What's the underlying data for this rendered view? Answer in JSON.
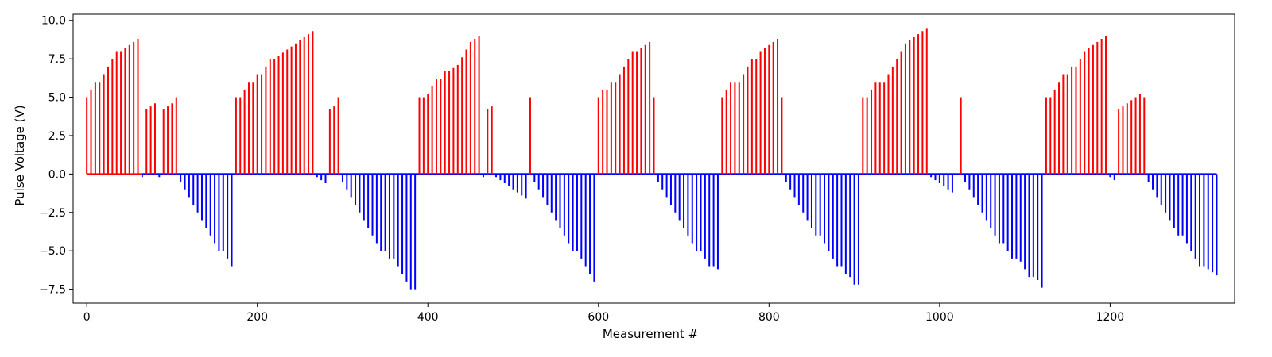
{
  "chart_data": {
    "type": "bar",
    "title": "",
    "xlabel": "Measurement #",
    "ylabel": "Pulse Voltage (V)",
    "xlim": [
      -16,
      1346
    ],
    "ylim": [
      -8.4,
      10.4
    ],
    "xticks": [
      0,
      200,
      400,
      600,
      800,
      1000,
      1200
    ],
    "yticks": [
      -7.5,
      -5.0,
      -2.5,
      0.0,
      2.5,
      5.0,
      7.5,
      10.0
    ],
    "grid": false,
    "colors": {
      "positive": "#ff0000",
      "negative": "#0000ff",
      "axes": "#000000",
      "background": "#ffffff"
    },
    "series": [
      {
        "polarity": "positive",
        "x": [
          0,
          5,
          10,
          15,
          20,
          25,
          30,
          35,
          40,
          45,
          50,
          55,
          60,
          70,
          75,
          80,
          90,
          95,
          100,
          105,
          175,
          180,
          185,
          190,
          195,
          200,
          205,
          210,
          215,
          220,
          225,
          230,
          235,
          240,
          245,
          250,
          255,
          260,
          265,
          285,
          290,
          295,
          390,
          395,
          400,
          405,
          410,
          415,
          420,
          425,
          430,
          435,
          440,
          445,
          450,
          455,
          460,
          470,
          475,
          520,
          600,
          605,
          610,
          615,
          620,
          625,
          630,
          635,
          640,
          645,
          650,
          655,
          660,
          665,
          745,
          750,
          755,
          760,
          765,
          770,
          775,
          780,
          785,
          790,
          795,
          800,
          805,
          810,
          815,
          910,
          915,
          920,
          925,
          930,
          935,
          940,
          945,
          950,
          955,
          960,
          965,
          970,
          975,
          980,
          985,
          1025,
          1125,
          1130,
          1135,
          1140,
          1145,
          1150,
          1155,
          1160,
          1165,
          1170,
          1175,
          1180,
          1185,
          1190,
          1195,
          1210,
          1215,
          1220,
          1225,
          1230,
          1235,
          1240
        ],
        "values": [
          5.0,
          5.5,
          6.0,
          6.0,
          6.5,
          7.0,
          7.5,
          8.0,
          8.0,
          8.2,
          8.4,
          8.6,
          8.8,
          4.2,
          4.4,
          4.6,
          4.2,
          4.4,
          4.6,
          5.0,
          5.0,
          5.0,
          5.5,
          6.0,
          6.0,
          6.5,
          6.5,
          7.0,
          7.5,
          7.5,
          7.7,
          7.9,
          8.1,
          8.3,
          8.5,
          8.7,
          8.9,
          9.1,
          9.3,
          4.2,
          4.4,
          5.0,
          5.0,
          5.0,
          5.2,
          5.7,
          6.2,
          6.2,
          6.7,
          6.7,
          6.9,
          7.1,
          7.6,
          8.1,
          8.6,
          8.8,
          9.0,
          4.2,
          4.4,
          5.0,
          5.0,
          5.5,
          5.5,
          6.0,
          6.0,
          6.5,
          7.0,
          7.5,
          8.0,
          8.0,
          8.2,
          8.4,
          8.6,
          5.0,
          5.0,
          5.5,
          6.0,
          6.0,
          6.0,
          6.5,
          7.0,
          7.5,
          7.5,
          8.0,
          8.2,
          8.4,
          8.6,
          8.8,
          5.0,
          5.0,
          5.0,
          5.5,
          6.0,
          6.0,
          6.0,
          6.5,
          7.0,
          7.5,
          8.0,
          8.5,
          8.7,
          8.9,
          9.1,
          9.3,
          9.5,
          5.0,
          5.0,
          5.0,
          5.5,
          6.0,
          6.5,
          6.5,
          7.0,
          7.0,
          7.5,
          8.0,
          8.2,
          8.4,
          8.6,
          8.8,
          9.0,
          4.2,
          4.4,
          4.6,
          4.8,
          5.0,
          5.2,
          5.0
        ]
      },
      {
        "polarity": "negative",
        "x": [
          65,
          85,
          110,
          115,
          120,
          125,
          130,
          135,
          140,
          145,
          150,
          155,
          160,
          165,
          170,
          270,
          275,
          280,
          300,
          305,
          310,
          315,
          320,
          325,
          330,
          335,
          340,
          345,
          350,
          355,
          360,
          365,
          370,
          375,
          380,
          385,
          465,
          480,
          485,
          490,
          495,
          500,
          505,
          510,
          515,
          525,
          530,
          535,
          540,
          545,
          550,
          555,
          560,
          565,
          570,
          575,
          580,
          585,
          590,
          595,
          670,
          675,
          680,
          685,
          690,
          695,
          700,
          705,
          710,
          715,
          720,
          725,
          730,
          735,
          740,
          820,
          825,
          830,
          835,
          840,
          845,
          850,
          855,
          860,
          865,
          870,
          875,
          880,
          885,
          890,
          895,
          900,
          905,
          990,
          995,
          1000,
          1005,
          1010,
          1015,
          1030,
          1035,
          1040,
          1045,
          1050,
          1055,
          1060,
          1065,
          1070,
          1075,
          1080,
          1085,
          1090,
          1095,
          1100,
          1105,
          1110,
          1115,
          1120,
          1200,
          1205,
          1245,
          1250,
          1255,
          1260,
          1265,
          1270,
          1275,
          1280,
          1285,
          1290,
          1295,
          1300,
          1305,
          1310,
          1315,
          1320,
          1325
        ],
        "values": [
          -0.2,
          -0.2,
          -0.5,
          -1.0,
          -1.5,
          -2.0,
          -2.5,
          -3.0,
          -3.5,
          -4.0,
          -4.5,
          -5.0,
          -5.0,
          -5.5,
          -6.0,
          -0.2,
          -0.4,
          -0.6,
          -0.5,
          -1.0,
          -1.5,
          -2.0,
          -2.5,
          -3.0,
          -3.5,
          -4.0,
          -4.5,
          -5.0,
          -5.0,
          -5.5,
          -5.5,
          -6.0,
          -6.5,
          -7.0,
          -7.5,
          -7.5,
          -0.2,
          -0.2,
          -0.4,
          -0.6,
          -0.8,
          -1.0,
          -1.2,
          -1.4,
          -1.6,
          -0.5,
          -1.0,
          -1.5,
          -2.0,
          -2.5,
          -3.0,
          -3.5,
          -4.0,
          -4.5,
          -5.0,
          -5.0,
          -5.5,
          -6.0,
          -6.5,
          -7.0,
          -0.5,
          -1.0,
          -1.5,
          -2.0,
          -2.5,
          -3.0,
          -3.5,
          -4.0,
          -4.5,
          -5.0,
          -5.0,
          -5.5,
          -6.0,
          -6.0,
          -6.2,
          -0.5,
          -1.0,
          -1.5,
          -2.0,
          -2.5,
          -3.0,
          -3.5,
          -4.0,
          -4.0,
          -4.5,
          -5.0,
          -5.5,
          -6.0,
          -6.0,
          -6.5,
          -6.7,
          -7.2,
          -7.2,
          -0.2,
          -0.4,
          -0.6,
          -0.8,
          -1.0,
          -1.2,
          -0.5,
          -1.0,
          -1.5,
          -2.0,
          -2.5,
          -3.0,
          -3.5,
          -4.0,
          -4.5,
          -4.5,
          -5.0,
          -5.5,
          -5.5,
          -5.7,
          -6.2,
          -6.7,
          -6.7,
          -6.9,
          -7.4,
          -0.2,
          -0.4,
          -0.5,
          -1.0,
          -1.5,
          -2.0,
          -2.5,
          -3.0,
          -3.5,
          -4.0,
          -4.0,
          -4.5,
          -5.0,
          -5.5,
          -6.0,
          -6.0,
          -6.2,
          -6.4,
          -6.6
        ]
      }
    ]
  }
}
